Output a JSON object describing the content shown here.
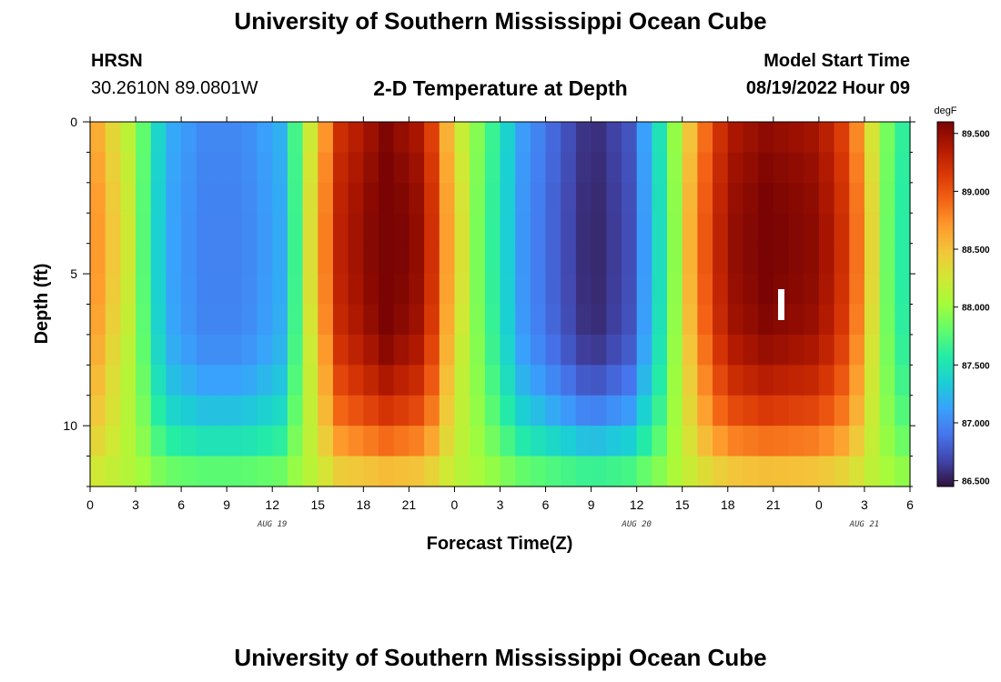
{
  "header": {
    "title": "University of Southern Mississippi Ocean Cube",
    "station": "HRSN",
    "coords": "30.2610N  89.0801W",
    "subtitle": "2-D Temperature at Depth",
    "start_label": "Model Start Time",
    "start_value": "08/19/2022 Hour 09"
  },
  "footer": {
    "title": "University of Southern Mississippi Ocean Cube"
  },
  "chart_data": {
    "type": "heatmap",
    "title": "2-D Temperature at Depth",
    "xlabel": "Forecast Time(Z)",
    "ylabel": "Depth (ft)",
    "x_tick_labels": [
      "0",
      "3",
      "6",
      "9",
      "12",
      "15",
      "18",
      "21",
      "0",
      "3",
      "6",
      "9",
      "12",
      "15",
      "18",
      "21",
      "0",
      "3",
      "6"
    ],
    "x_hours_range": [
      0,
      54
    ],
    "date_labels": [
      {
        "label": "AUG 19",
        "hour": 12
      },
      {
        "label": "AUG 20",
        "hour": 36
      },
      {
        "label": "AUG 21",
        "hour": 51
      }
    ],
    "depth_tick_labels": [
      "0",
      "5",
      "10"
    ],
    "depth_range": [
      0,
      12
    ],
    "depth_layers_ft": [
      0.5,
      1.5,
      2.5,
      3.5,
      4.5,
      5.5,
      6.5,
      7.5,
      8.5,
      9.5,
      10.5,
      11.5
    ],
    "colorbar": {
      "unit": "degF",
      "range": [
        86.45,
        89.6
      ],
      "tick_labels": [
        "86.500",
        "87.000",
        "87.500",
        "88.000",
        "88.500",
        "89.000",
        "89.500"
      ],
      "colors": [
        "#30123b",
        "#4145ab",
        "#4675ed",
        "#39a2fc",
        "#1bcfd4",
        "#24eca6",
        "#61fc6c",
        "#a4fc3b",
        "#d1e834",
        "#f3c63a",
        "#fe9b2d",
        "#f36315",
        "#d93806",
        "#b11901",
        "#7a0403"
      ]
    },
    "surface_temp_keyframes_degF": [
      [
        0,
        88.7
      ],
      [
        3,
        88.0
      ],
      [
        5,
        87.2
      ],
      [
        7.5,
        87.0
      ],
      [
        10,
        87.0
      ],
      [
        12.5,
        87.2
      ],
      [
        14.5,
        88.2
      ],
      [
        16.5,
        89.2
      ],
      [
        19.5,
        89.55
      ],
      [
        22,
        89.35
      ],
      [
        24,
        88.3
      ],
      [
        26,
        87.8
      ],
      [
        28.5,
        87.1
      ],
      [
        30.5,
        86.85
      ],
      [
        33,
        86.55
      ],
      [
        35.5,
        86.75
      ],
      [
        37.5,
        87.5
      ],
      [
        40,
        88.7
      ],
      [
        42,
        89.35
      ],
      [
        44.5,
        89.5
      ],
      [
        48,
        89.4
      ],
      [
        50,
        89.0
      ],
      [
        52,
        88.0
      ],
      [
        54,
        87.5
      ]
    ],
    "depth_smoothing": 0.12,
    "mean_temp_degF": 88.1
  }
}
